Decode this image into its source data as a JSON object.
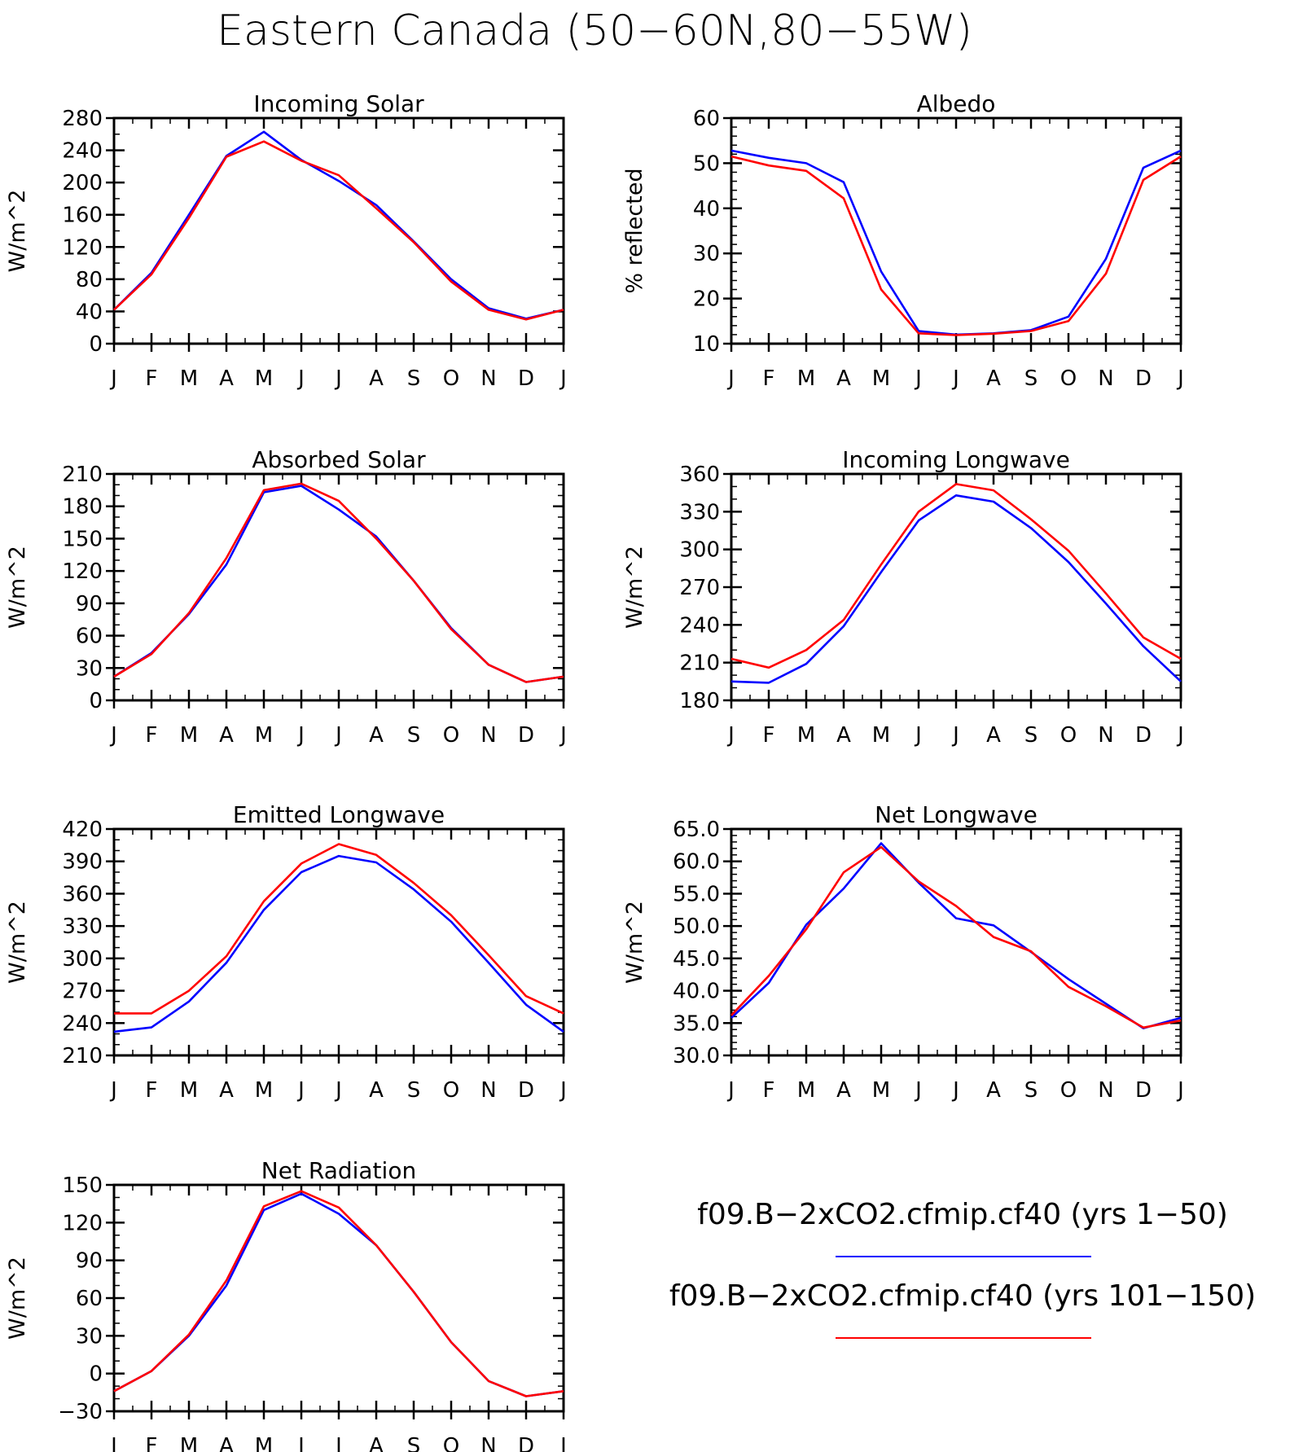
{
  "figure": {
    "title": "Eastern Canada (50−60N,80−55W)"
  },
  "legend": [
    {
      "label": "f09.B−2xCO2.cfmip.cf40 (yrs 1−50)",
      "color": "#0000ff"
    },
    {
      "label": "f09.B−2xCO2.cfmip.cf40 (yrs 101−150)",
      "color": "#ff0000"
    }
  ],
  "chart_data": [
    {
      "type": "line",
      "title": "Incoming Solar",
      "ylabel": "W/m^2",
      "xlabel": "",
      "categories": [
        "J",
        "F",
        "M",
        "A",
        "M",
        "J",
        "J",
        "A",
        "S",
        "O",
        "N",
        "D",
        "J"
      ],
      "ylim": [
        0,
        280
      ],
      "yticks": [
        0,
        40,
        80,
        120,
        160,
        200,
        240,
        280
      ],
      "ytick_labels": [
        "0",
        "40",
        "80",
        "120",
        "160",
        "200",
        "240",
        "280"
      ],
      "minor_per_major": 2,
      "series": [
        {
          "color": "#0000ff",
          "values": [
            42,
            88,
            160,
            233,
            263,
            228,
            202,
            172,
            127,
            80,
            44,
            31,
            42
          ]
        },
        {
          "color": "#ff0000",
          "values": [
            42,
            86,
            156,
            232,
            251,
            227,
            209,
            168,
            126,
            77,
            42,
            30,
            42
          ]
        }
      ]
    },
    {
      "type": "line",
      "title": "Albedo",
      "ylabel": "% reflected",
      "xlabel": "",
      "categories": [
        "J",
        "F",
        "M",
        "A",
        "M",
        "J",
        "J",
        "A",
        "S",
        "O",
        "N",
        "D",
        "J"
      ],
      "ylim": [
        10,
        60
      ],
      "yticks": [
        10,
        20,
        30,
        40,
        50,
        60
      ],
      "ytick_labels": [
        "10",
        "20",
        "30",
        "40",
        "50",
        "60"
      ],
      "minor_per_major": 5,
      "series": [
        {
          "color": "#0000ff",
          "values": [
            52.8,
            51.2,
            50.0,
            45.8,
            26.0,
            12.8,
            12.0,
            12.3,
            13.0,
            16.0,
            28.8,
            49.0,
            52.8
          ]
        },
        {
          "color": "#ff0000",
          "values": [
            51.5,
            49.5,
            48.3,
            42.2,
            22.0,
            12.3,
            11.9,
            12.2,
            12.8,
            15.0,
            25.5,
            46.3,
            51.5
          ]
        }
      ]
    },
    {
      "type": "line",
      "title": "Absorbed Solar",
      "ylabel": "W/m^2",
      "xlabel": "",
      "categories": [
        "J",
        "F",
        "M",
        "A",
        "M",
        "J",
        "J",
        "A",
        "S",
        "O",
        "N",
        "D",
        "J"
      ],
      "ylim": [
        0,
        210
      ],
      "yticks": [
        0,
        30,
        60,
        90,
        120,
        150,
        180,
        210
      ],
      "ytick_labels": [
        "0",
        "30",
        "60",
        "90",
        "120",
        "150",
        "180",
        "210"
      ],
      "minor_per_major": 3,
      "series": [
        {
          "color": "#0000ff",
          "values": [
            22,
            44,
            80,
            126,
            193,
            199,
            177,
            152,
            111,
            67,
            33,
            17,
            22
          ]
        },
        {
          "color": "#ff0000",
          "values": [
            22,
            43,
            81,
            132,
            195,
            201,
            185,
            150,
            111,
            66,
            33,
            17,
            22
          ]
        }
      ]
    },
    {
      "type": "line",
      "title": "Incoming Longwave",
      "ylabel": "W/m^2",
      "xlabel": "",
      "categories": [
        "J",
        "F",
        "M",
        "A",
        "M",
        "J",
        "J",
        "A",
        "S",
        "O",
        "N",
        "D",
        "J"
      ],
      "ylim": [
        180,
        360
      ],
      "yticks": [
        180,
        210,
        240,
        270,
        300,
        330,
        360
      ],
      "ytick_labels": [
        "180",
        "210",
        "240",
        "270",
        "300",
        "330",
        "360"
      ],
      "minor_per_major": 3,
      "series": [
        {
          "color": "#0000ff",
          "values": [
            195,
            194,
            209,
            239,
            282,
            323,
            343,
            338,
            317,
            290,
            257,
            223,
            195
          ]
        },
        {
          "color": "#ff0000",
          "values": [
            213,
            206,
            220,
            244,
            288,
            330,
            352,
            347,
            324,
            299,
            265,
            230,
            213
          ]
        }
      ]
    },
    {
      "type": "line",
      "title": "Emitted Longwave",
      "ylabel": "W/m^2",
      "xlabel": "",
      "categories": [
        "J",
        "F",
        "M",
        "A",
        "M",
        "J",
        "J",
        "A",
        "S",
        "O",
        "N",
        "D",
        "J"
      ],
      "ylim": [
        210,
        420
      ],
      "yticks": [
        210,
        240,
        270,
        300,
        330,
        360,
        390,
        420
      ],
      "ytick_labels": [
        "210",
        "240",
        "270",
        "300",
        "330",
        "360",
        "390",
        "420"
      ],
      "minor_per_major": 3,
      "series": [
        {
          "color": "#0000ff",
          "values": [
            232,
            236,
            260,
            296,
            345,
            380,
            395,
            389,
            364,
            334,
            296,
            257,
            232
          ]
        },
        {
          "color": "#ff0000",
          "values": [
            249,
            249,
            270,
            302,
            353,
            388,
            406,
            396,
            370,
            340,
            303,
            265,
            249
          ]
        }
      ]
    },
    {
      "type": "line",
      "title": "Net Longwave",
      "ylabel": "W/m^2",
      "xlabel": "",
      "categories": [
        "J",
        "F",
        "M",
        "A",
        "M",
        "J",
        "J",
        "A",
        "S",
        "O",
        "N",
        "D",
        "J"
      ],
      "ylim": [
        30,
        65
      ],
      "yticks": [
        30,
        35,
        40,
        45,
        50,
        55,
        60,
        65
      ],
      "ytick_labels": [
        "30.0",
        "35.0",
        "40.0",
        "45.0",
        "50.0",
        "55.0",
        "60.0",
        "65.0"
      ],
      "minor_per_major": 5,
      "series": [
        {
          "color": "#0000ff",
          "values": [
            35.8,
            41.2,
            50.2,
            55.8,
            62.8,
            56.7,
            51.2,
            50.1,
            46.0,
            41.8,
            38.0,
            34.2,
            35.8
          ]
        },
        {
          "color": "#ff0000",
          "values": [
            36.2,
            42.3,
            49.5,
            58.3,
            62.2,
            56.9,
            53.1,
            48.3,
            46.1,
            40.6,
            37.6,
            34.3,
            35.4
          ]
        }
      ]
    },
    {
      "type": "line",
      "title": "Net Radiation",
      "ylabel": "W/m^2",
      "xlabel": "",
      "categories": [
        "J",
        "F",
        "M",
        "A",
        "M",
        "J",
        "J",
        "A",
        "S",
        "O",
        "N",
        "D",
        "J"
      ],
      "ylim": [
        -30,
        150
      ],
      "yticks": [
        -30,
        0,
        30,
        60,
        90,
        120,
        150
      ],
      "ytick_labels": [
        "−30",
        "0",
        "30",
        "60",
        "90",
        "120",
        "150"
      ],
      "minor_per_major": 3,
      "series": [
        {
          "color": "#0000ff",
          "values": [
            -14,
            2,
            30,
            70,
            130,
            143,
            127,
            102,
            65,
            25,
            -6,
            -18,
            -14
          ]
        },
        {
          "color": "#ff0000",
          "values": [
            -14,
            2,
            31,
            74,
            133,
            145,
            132,
            102,
            65,
            25,
            -6,
            -18,
            -14
          ]
        }
      ]
    }
  ]
}
